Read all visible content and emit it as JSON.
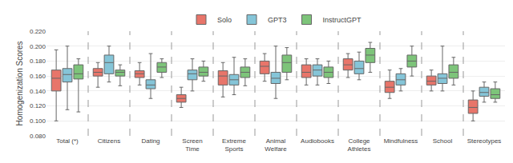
{
  "chart_data": {
    "type": "box",
    "categories": [
      "Total (*)",
      "Citizens",
      "Dating",
      "Screen\nTime",
      "Extreme\nSports",
      "Animal\nWelfare",
      "Audiobooks",
      "College\nAthletes",
      "Mindfulness",
      "School",
      "Stereotypes"
    ],
    "ylabel": "Homogenization Scores",
    "ylim": [
      0.08,
      0.22
    ],
    "yticks": [
      {
        "value": 0.08,
        "label": "0.080"
      },
      {
        "value": 0.1,
        "label": "0.100"
      },
      {
        "value": 0.12,
        "label": "0.120"
      },
      {
        "value": 0.14,
        "label": "0.140"
      },
      {
        "value": 0.16,
        "label": "0.160"
      },
      {
        "value": 0.18,
        "label": "0.180"
      },
      {
        "value": 0.2,
        "label": "0.200"
      },
      {
        "value": 0.22,
        "label": "0.220"
      }
    ],
    "grid": true,
    "legend": "top",
    "series": [
      {
        "name": "Solo",
        "color": "#E8756A",
        "lower_whisker": [
          0.1,
          0.145,
          0.148,
          0.118,
          0.132,
          0.153,
          0.148,
          0.158,
          0.13,
          0.14,
          0.1
        ],
        "q1": [
          0.14,
          0.16,
          0.158,
          0.125,
          0.148,
          0.163,
          0.158,
          0.168,
          0.138,
          0.148,
          0.11
        ],
        "median": [
          0.157,
          0.165,
          0.163,
          0.13,
          0.16,
          0.173,
          0.165,
          0.175,
          0.145,
          0.153,
          0.118
        ],
        "q3": [
          0.168,
          0.17,
          0.167,
          0.135,
          0.167,
          0.18,
          0.175,
          0.183,
          0.153,
          0.16,
          0.128
        ],
        "upper_whisker": [
          0.195,
          0.178,
          0.178,
          0.145,
          0.178,
          0.19,
          0.183,
          0.19,
          0.168,
          0.168,
          0.14
        ]
      },
      {
        "name": "GPT3",
        "color": "#85C5D8",
        "lower_whisker": [
          0.115,
          0.152,
          0.13,
          0.14,
          0.135,
          0.13,
          0.148,
          0.155,
          0.14,
          0.14,
          0.125
        ],
        "q1": [
          0.152,
          0.163,
          0.143,
          0.155,
          0.148,
          0.15,
          0.16,
          0.163,
          0.148,
          0.15,
          0.133
        ],
        "median": [
          0.162,
          0.178,
          0.148,
          0.163,
          0.155,
          0.157,
          0.168,
          0.17,
          0.155,
          0.157,
          0.138
        ],
        "q3": [
          0.17,
          0.188,
          0.155,
          0.168,
          0.162,
          0.165,
          0.175,
          0.18,
          0.163,
          0.163,
          0.145
        ],
        "upper_whisker": [
          0.2,
          0.2,
          0.19,
          0.183,
          0.185,
          0.2,
          0.183,
          0.192,
          0.17,
          0.2,
          0.152
        ]
      },
      {
        "name": "InstructGPT",
        "color": "#7DC47A",
        "lower_whisker": [
          0.112,
          0.147,
          0.158,
          0.153,
          0.147,
          0.155,
          0.15,
          0.165,
          0.16,
          0.148,
          0.125
        ],
        "q1": [
          0.156,
          0.16,
          0.165,
          0.16,
          0.158,
          0.165,
          0.158,
          0.178,
          0.172,
          0.157,
          0.13
        ],
        "median": [
          0.163,
          0.165,
          0.172,
          0.165,
          0.165,
          0.178,
          0.165,
          0.188,
          0.18,
          0.165,
          0.135
        ],
        "q3": [
          0.175,
          0.168,
          0.178,
          0.172,
          0.172,
          0.188,
          0.172,
          0.197,
          0.188,
          0.175,
          0.143
        ],
        "upper_whisker": [
          0.183,
          0.175,
          0.183,
          0.18,
          0.183,
          0.198,
          0.18,
          0.205,
          0.2,
          0.185,
          0.152
        ]
      }
    ]
  }
}
